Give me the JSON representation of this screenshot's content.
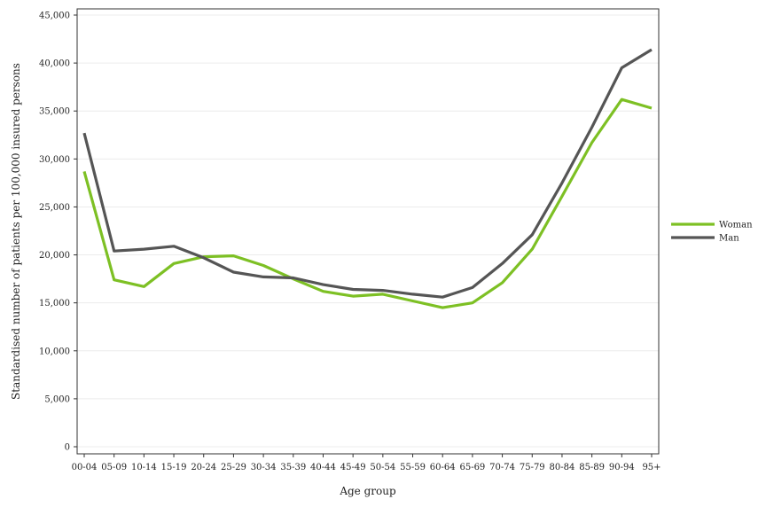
{
  "chart_data": {
    "type": "line",
    "xlabel": "Age group",
    "ylabel": "Standardised number of patients per 100,000 insured persons",
    "categories": [
      "00-04",
      "05-09",
      "10-14",
      "15-19",
      "20-24",
      "25-29",
      "30-34",
      "35-39",
      "40-44",
      "45-49",
      "50-54",
      "55-59",
      "60-64",
      "65-69",
      "70-74",
      "75-79",
      "80-84",
      "85-89",
      "90-94",
      "95+"
    ],
    "ylim": [
      0,
      45000
    ],
    "yticks": [
      0,
      5000,
      10000,
      15000,
      20000,
      25000,
      30000,
      35000,
      40000,
      45000
    ],
    "ytick_labels": [
      "0",
      "5,000",
      "10,000",
      "15,000",
      "20,000",
      "25,000",
      "30,000",
      "35,000",
      "40,000",
      "45,000"
    ],
    "grid": true,
    "legend_position": "right",
    "series": [
      {
        "name": "Woman",
        "color": "#7dc024",
        "values": [
          28700,
          17400,
          16700,
          19100,
          19800,
          19900,
          18900,
          17500,
          16200,
          15700,
          15900,
          15200,
          14500,
          15000,
          17100,
          20600,
          26100,
          31700,
          36200,
          35300
        ]
      },
      {
        "name": "Man",
        "color": "#555555",
        "values": [
          32700,
          20400,
          20600,
          20900,
          19700,
          18200,
          17700,
          17600,
          16900,
          16400,
          16300,
          15900,
          15600,
          16600,
          19100,
          22100,
          27500,
          33300,
          39500,
          41400
        ]
      }
    ]
  }
}
